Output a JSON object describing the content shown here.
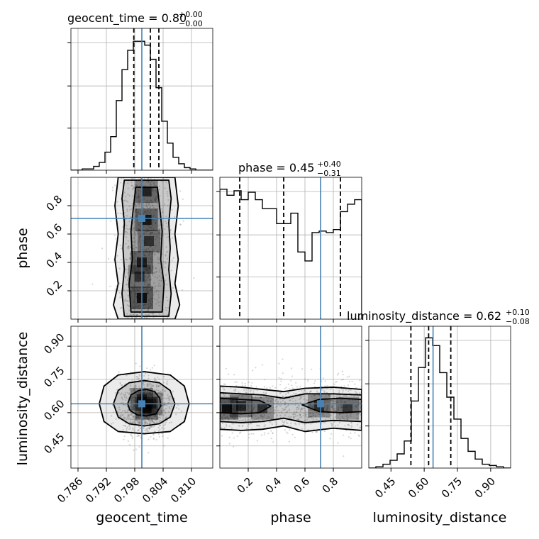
{
  "chart_data": {
    "type": "corner",
    "parameters": [
      "geocent_time",
      "phase",
      "luminosity_distance"
    ],
    "truths": {
      "geocent_time": 0.7995,
      "phase": 0.71,
      "luminosity_distance": 0.64
    },
    "colors": {
      "truth": "#4682b4",
      "hist": "#000000",
      "grid": "#b0b0b0",
      "points": "#8c8c8c"
    },
    "grid": true,
    "titles": [
      {
        "param": "geocent_time",
        "label": "geocent_time",
        "median": "0.80",
        "plus": "+0.00",
        "minus": "−0.00"
      },
      {
        "param": "phase",
        "label": "phase",
        "median": "0.45",
        "plus": "+0.40",
        "minus": "−0.31"
      },
      {
        "param": "luminosity_distance",
        "label": "luminosity_distance",
        "median": "0.62",
        "plus": "+0.10",
        "minus": "−0.08"
      }
    ],
    "axes": {
      "geocent_time": {
        "range": [
          0.7845,
          0.8145
        ],
        "ticks": [
          "0.786",
          "0.792",
          "0.798",
          "0.804",
          "0.810"
        ],
        "xlabel": "geocent_time"
      },
      "phase": {
        "range": [
          0.0,
          1.0
        ],
        "ticks": [
          "0.2",
          "0.4",
          "0.6",
          "0.8"
        ],
        "xlabel": "phase",
        "ylabel": "phase"
      },
      "luminosity_distance": {
        "range": [
          0.35,
          0.99
        ],
        "ticks": [
          "0.45",
          "0.60",
          "0.75",
          "0.90"
        ],
        "xlabel": "luminosity_distance",
        "ylabel": "luminosity_distance"
      }
    },
    "histograms": {
      "geocent_time": {
        "bins_min": 0.7845,
        "bins_max": 0.8145,
        "counts": [
          0,
          0,
          1,
          1,
          3,
          6,
          14,
          26,
          54,
          78,
          93,
          100,
          100,
          97,
          86,
          64,
          38,
          21,
          10,
          5,
          2,
          1,
          0,
          0,
          0
        ],
        "quantiles": [
          0.7978,
          0.8013,
          0.8031
        ],
        "ylim": [
          0,
          110
        ]
      },
      "phase": {
        "bins_min": 0.0,
        "bins_max": 1.0,
        "counts": [
          87,
          83,
          86,
          80,
          85,
          80,
          74,
          74,
          64,
          64,
          71,
          45,
          39,
          58,
          59,
          58,
          60,
          72,
          77,
          80
        ],
        "quantiles": [
          0.14,
          0.45,
          0.85
        ],
        "ylim": [
          0,
          95
        ]
      },
      "luminosity_distance": {
        "bins_min": 0.35,
        "bins_max": 0.99,
        "counts": [
          0,
          1,
          3,
          6,
          11,
          21,
          52,
          78,
          101,
          95,
          74,
          55,
          38,
          23,
          13,
          7,
          3,
          2,
          1,
          0
        ],
        "quantiles": [
          0.54,
          0.62,
          0.72
        ],
        "ylim": [
          0,
          110
        ]
      }
    },
    "contours": [
      {
        "panel": "phase|geocent_time",
        "x_param": "geocent_time",
        "y_param": "phase",
        "levels": [
          [
            [
              0.7945,
              0.0
            ],
            [
              0.7935,
              0.1
            ],
            [
              0.7945,
              0.25
            ],
            [
              0.7938,
              0.42
            ],
            [
              0.7945,
              0.6
            ],
            [
              0.7938,
              0.8
            ],
            [
              0.7945,
              1.0
            ],
            [
              0.8065,
              1.0
            ],
            [
              0.8072,
              0.8
            ],
            [
              0.8065,
              0.6
            ],
            [
              0.8072,
              0.42
            ],
            [
              0.8065,
              0.25
            ],
            [
              0.8075,
              0.1
            ],
            [
              0.8065,
              0.0
            ]
          ],
          [
            [
              0.7958,
              0.02
            ],
            [
              0.7953,
              0.18
            ],
            [
              0.7958,
              0.35
            ],
            [
              0.7955,
              0.5
            ],
            [
              0.7958,
              0.68
            ],
            [
              0.7953,
              0.85
            ],
            [
              0.7958,
              0.98
            ],
            [
              0.8052,
              0.98
            ],
            [
              0.8057,
              0.85
            ],
            [
              0.8052,
              0.68
            ],
            [
              0.8055,
              0.5
            ],
            [
              0.8052,
              0.35
            ],
            [
              0.8057,
              0.18
            ],
            [
              0.8052,
              0.02
            ]
          ],
          [
            [
              0.7972,
              0.05
            ],
            [
              0.7968,
              0.25
            ],
            [
              0.7975,
              0.42
            ],
            [
              0.7972,
              0.62
            ],
            [
              0.7976,
              0.75
            ],
            [
              0.7982,
              0.93
            ],
            [
              0.8028,
              0.93
            ],
            [
              0.8034,
              0.75
            ],
            [
              0.8038,
              0.62
            ],
            [
              0.8035,
              0.42
            ],
            [
              0.8042,
              0.25
            ],
            [
              0.8038,
              0.05
            ]
          ]
        ],
        "density": [
          [
            0.7995,
            0.15,
            1.0
          ],
          [
            0.7995,
            0.4,
            0.85
          ],
          [
            0.8005,
            0.7,
            0.9
          ],
          [
            0.8005,
            0.9,
            0.8
          ],
          [
            0.799,
            0.3,
            0.7
          ],
          [
            0.801,
            0.55,
            0.7
          ]
        ]
      },
      {
        "panel": "luminosity_distance|geocent_time",
        "x_param": "geocent_time",
        "y_param": "luminosity_distance",
        "levels": [
          [
            [
              0.7905,
              0.64
            ],
            [
              0.7915,
              0.72
            ],
            [
              0.7945,
              0.77
            ],
            [
              0.8,
              0.785
            ],
            [
              0.8055,
              0.77
            ],
            [
              0.8085,
              0.72
            ],
            [
              0.8095,
              0.64
            ],
            [
              0.8085,
              0.56
            ],
            [
              0.8055,
              0.515
            ],
            [
              0.8,
              0.505
            ],
            [
              0.7945,
              0.515
            ],
            [
              0.7915,
              0.56
            ]
          ],
          [
            [
              0.7935,
              0.64
            ],
            [
              0.7945,
              0.7
            ],
            [
              0.7968,
              0.735
            ],
            [
              0.8,
              0.745
            ],
            [
              0.8032,
              0.735
            ],
            [
              0.8055,
              0.7
            ],
            [
              0.8065,
              0.64
            ],
            [
              0.8055,
              0.58
            ],
            [
              0.8032,
              0.55
            ],
            [
              0.8,
              0.54
            ],
            [
              0.7968,
              0.55
            ],
            [
              0.7945,
              0.58
            ]
          ],
          [
            [
              0.7965,
              0.64
            ],
            [
              0.7972,
              0.68
            ],
            [
              0.7988,
              0.7
            ],
            [
              0.8005,
              0.705
            ],
            [
              0.8022,
              0.695
            ],
            [
              0.8033,
              0.665
            ],
            [
              0.8035,
              0.63
            ],
            [
              0.8025,
              0.595
            ],
            [
              0.8005,
              0.585
            ],
            [
              0.7985,
              0.59
            ],
            [
              0.797,
              0.61
            ]
          ]
        ],
        "density": [
          [
            0.8005,
            0.62,
            1.0
          ],
          [
            0.7995,
            0.66,
            0.8
          ],
          [
            0.8015,
            0.64,
            0.7
          ]
        ]
      },
      {
        "panel": "luminosity_distance|phase",
        "x_param": "phase",
        "y_param": "luminosity_distance",
        "levels": [
          [
            [
              0.0,
              0.72
            ],
            [
              0.15,
              0.715
            ],
            [
              0.3,
              0.705
            ],
            [
              0.45,
              0.695
            ],
            [
              0.6,
              0.71
            ],
            [
              0.8,
              0.715
            ],
            [
              1.0,
              0.705
            ],
            [
              1.0,
              0.52
            ],
            [
              0.8,
              0.53
            ],
            [
              0.6,
              0.515
            ],
            [
              0.45,
              0.54
            ],
            [
              0.3,
              0.525
            ],
            [
              0.15,
              0.52
            ],
            [
              0.0,
              0.525
            ]
          ],
          [
            [
              0.0,
              0.69
            ],
            [
              0.15,
              0.685
            ],
            [
              0.3,
              0.68
            ],
            [
              0.45,
              0.665
            ],
            [
              0.6,
              0.685
            ],
            [
              0.8,
              0.685
            ],
            [
              1.0,
              0.68
            ],
            [
              1.0,
              0.56
            ],
            [
              0.8,
              0.565
            ],
            [
              0.6,
              0.555
            ],
            [
              0.45,
              0.575
            ],
            [
              0.3,
              0.56
            ],
            [
              0.15,
              0.555
            ],
            [
              0.0,
              0.56
            ]
          ],
          [
            [
              0.0,
              0.665
            ],
            [
              0.15,
              0.66
            ],
            [
              0.28,
              0.655
            ],
            [
              0.36,
              0.63
            ],
            [
              0.28,
              0.6
            ],
            [
              0.15,
              0.595
            ],
            [
              0.0,
              0.6
            ]
          ],
          [
            [
              1.0,
              0.66
            ],
            [
              0.85,
              0.665
            ],
            [
              0.7,
              0.66
            ],
            [
              0.58,
              0.635
            ],
            [
              0.7,
              0.605
            ],
            [
              0.85,
              0.6
            ],
            [
              1.0,
              0.605
            ]
          ]
        ],
        "density": [
          [
            0.05,
            0.62,
            1.0
          ],
          [
            0.15,
            0.63,
            0.8
          ],
          [
            0.3,
            0.62,
            0.7
          ],
          [
            0.7,
            0.63,
            0.7
          ],
          [
            0.9,
            0.62,
            0.6
          ]
        ]
      }
    ]
  }
}
